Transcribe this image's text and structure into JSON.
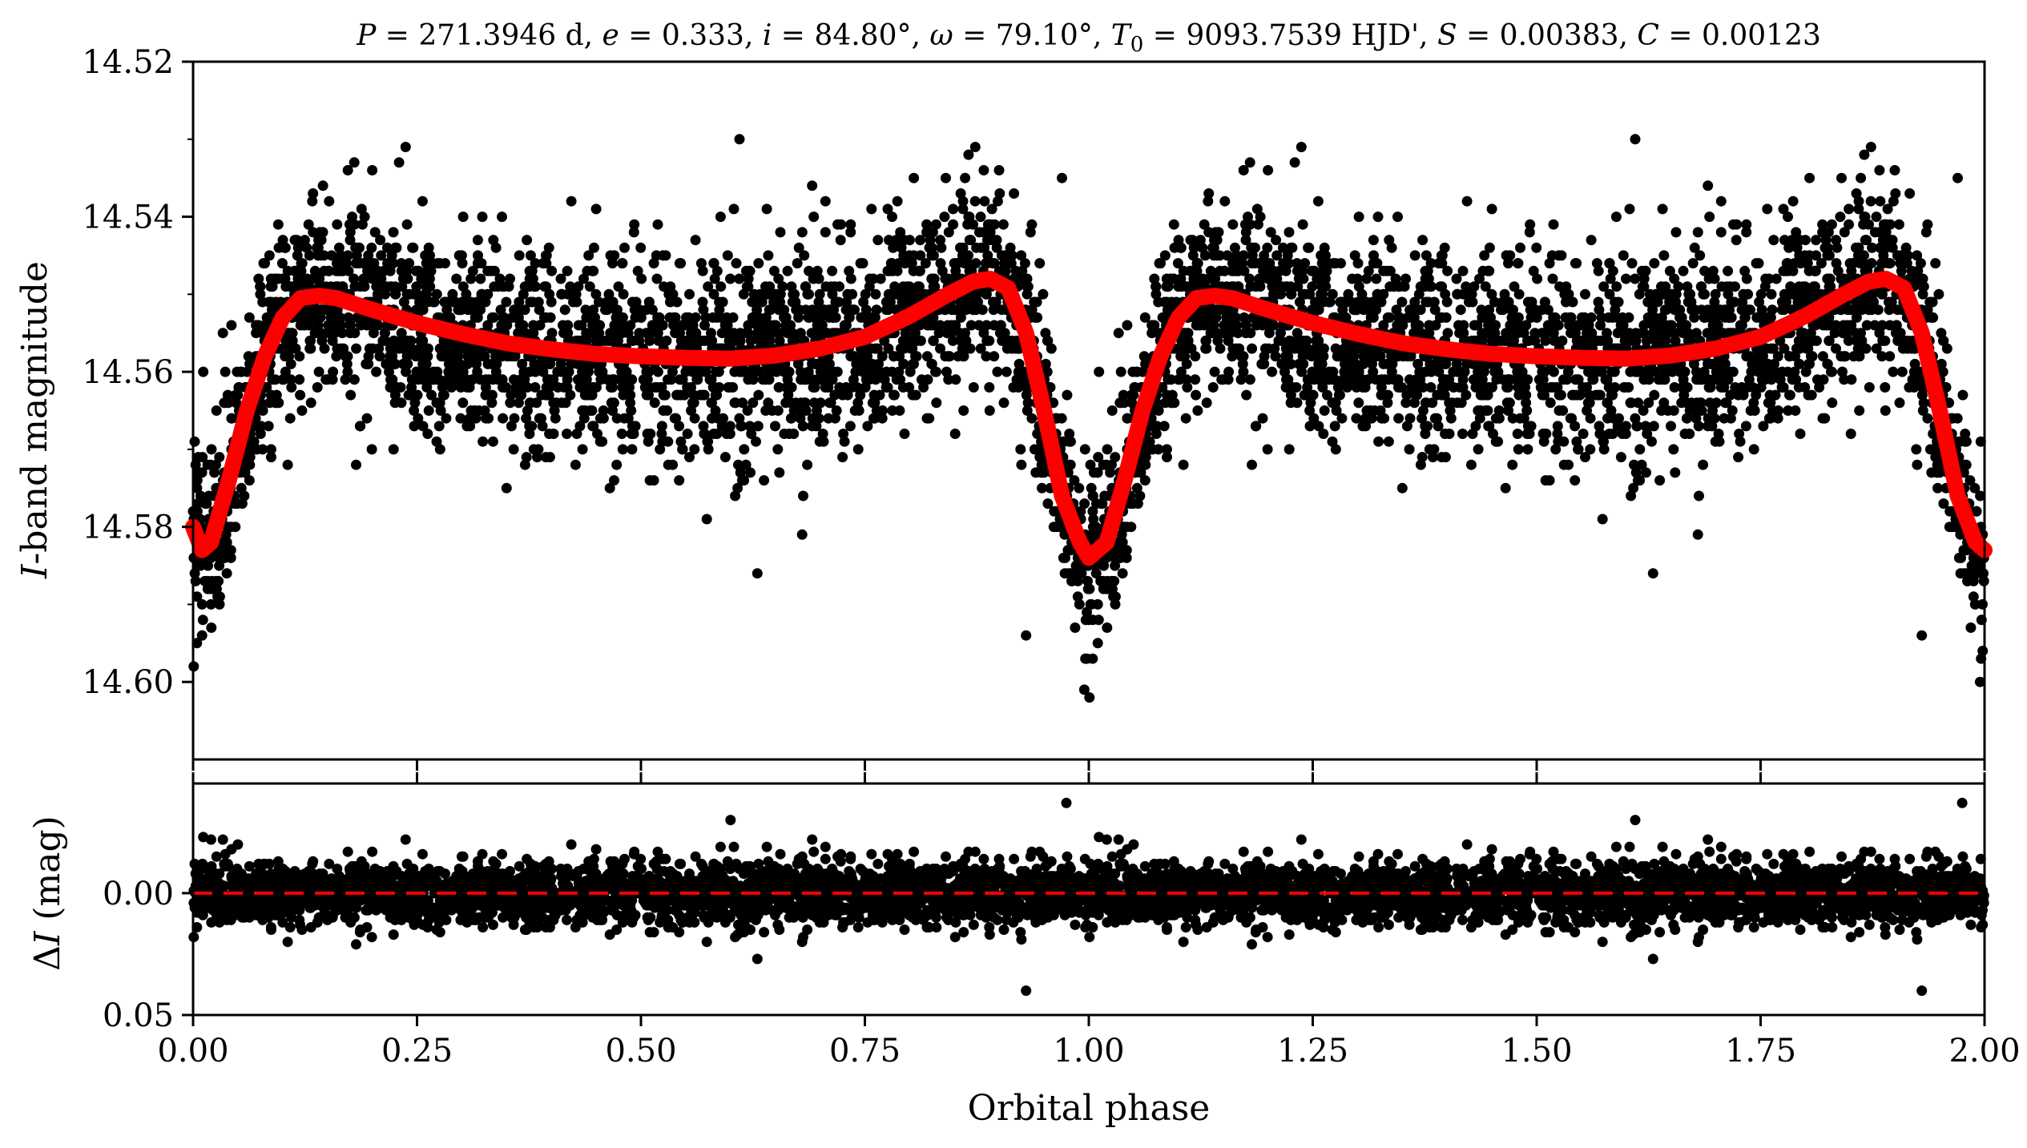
{
  "chart_data": [
    {
      "panel": "top",
      "type": "scatter",
      "title": "P = 271.3946 d, e = 0.333, i = 84.80°, ω = 79.10°, T0 = 9093.7539 HJD', S = 0.00383, C = 0.00123",
      "title_parts": {
        "P_sym": "P",
        "P_val": " = 271.3946 d, ",
        "e_sym": "e",
        "e_val": " = 0.333, ",
        "i_sym": "i",
        "i_val": " = 84.80°, ",
        "w_sym": "ω",
        "w_val": " = 79.10°, ",
        "T_sym": "T",
        "T_sub": "0",
        "T_val": " = 9093.7539 HJD', ",
        "S_sym": "S",
        "S_val": " = 0.00383, ",
        "C_sym": "C",
        "C_val": " = 0.00123"
      },
      "xlabel": "",
      "ylabel": "I-band magnitude",
      "ylabel_parts": {
        "italic": "I",
        "rest": "-band magnitude"
      },
      "xlim": [
        0.0,
        2.0
      ],
      "ylim": [
        14.61,
        14.52
      ],
      "y_inverted": true,
      "yticks": [
        "14.52",
        "14.54",
        "14.56",
        "14.58",
        "14.60"
      ],
      "yticks_values": [
        14.52,
        14.54,
        14.56,
        14.58,
        14.6
      ],
      "xticks_values": [
        0.0,
        0.25,
        0.5,
        0.75,
        1.0,
        1.25,
        1.5,
        1.75,
        2.0
      ],
      "grid": false,
      "series": [
        {
          "kind": "scatter",
          "color": "#000000",
          "description_points": [
            [
              0.0,
              14.578
            ],
            [
              0.005,
              14.585
            ],
            [
              0.01,
              14.594
            ],
            [
              0.02,
              14.59
            ],
            [
              0.03,
              14.582
            ],
            [
              0.04,
              14.574
            ],
            [
              0.05,
              14.566
            ],
            [
              0.06,
              14.562
            ],
            [
              0.07,
              14.558
            ],
            [
              0.08,
              14.554
            ],
            [
              0.1,
              14.548
            ],
            [
              0.12,
              14.547
            ],
            [
              0.14,
              14.543
            ],
            [
              0.145,
              14.536
            ],
            [
              0.18,
              14.533
            ],
            [
              0.2,
              14.534
            ],
            [
              0.23,
              14.533
            ],
            [
              0.25,
              14.55
            ],
            [
              0.28,
              14.556
            ],
            [
              0.3,
              14.545
            ],
            [
              0.35,
              14.575
            ],
            [
              0.4,
              14.556
            ],
            [
              0.45,
              14.539
            ],
            [
              0.47,
              14.574
            ],
            [
              0.5,
              14.553
            ],
            [
              0.55,
              14.56
            ],
            [
              0.6,
              14.557
            ],
            [
              0.61,
              14.53
            ],
            [
              0.63,
              14.586
            ],
            [
              0.66,
              14.568
            ],
            [
              0.68,
              14.581
            ],
            [
              0.7,
              14.561
            ],
            [
              0.75,
              14.557
            ],
            [
              0.8,
              14.554
            ],
            [
              0.85,
              14.549
            ],
            [
              0.88,
              14.544
            ],
            [
              0.9,
              14.547
            ],
            [
              0.91,
              14.551
            ],
            [
              0.93,
              14.594
            ],
            [
              0.95,
              14.567
            ],
            [
              0.97,
              14.535
            ],
            [
              0.98,
              14.579
            ],
            [
              0.995,
              14.601
            ],
            [
              1.0,
              14.592
            ],
            [
              1.01,
              14.595
            ],
            [
              1.02,
              14.588
            ],
            [
              1.03,
              14.583
            ],
            [
              1.05,
              14.566
            ],
            [
              1.1,
              14.549
            ],
            [
              1.14,
              14.543
            ],
            [
              1.18,
              14.533
            ],
            [
              1.2,
              14.534
            ],
            [
              1.23,
              14.533
            ],
            [
              1.3,
              14.548
            ],
            [
              1.35,
              14.575
            ],
            [
              1.45,
              14.539
            ],
            [
              1.5,
              14.553
            ],
            [
              1.58,
              14.557
            ],
            [
              1.61,
              14.53
            ],
            [
              1.63,
              14.586
            ],
            [
              1.68,
              14.581
            ],
            [
              1.75,
              14.557
            ],
            [
              1.85,
              14.549
            ],
            [
              1.89,
              14.544
            ],
            [
              1.93,
              14.594
            ],
            [
              1.97,
              14.535
            ],
            [
              1.98,
              14.579
            ],
            [
              1.995,
              14.6
            ]
          ]
        },
        {
          "kind": "line",
          "name": "model",
          "color": "#ff0000",
          "description_points": [
            [
              0.0,
              14.58
            ],
            [
              0.01,
              14.583
            ],
            [
              0.02,
              14.582
            ],
            [
              0.04,
              14.574
            ],
            [
              0.06,
              14.565
            ],
            [
              0.08,
              14.558
            ],
            [
              0.1,
              14.553
            ],
            [
              0.12,
              14.5505
            ],
            [
              0.14,
              14.5502
            ],
            [
              0.16,
              14.5505
            ],
            [
              0.2,
              14.552
            ],
            [
              0.25,
              14.5537
            ],
            [
              0.3,
              14.5551
            ],
            [
              0.35,
              14.5563
            ],
            [
              0.4,
              14.5571
            ],
            [
              0.45,
              14.5577
            ],
            [
              0.5,
              14.558
            ],
            [
              0.55,
              14.5582
            ],
            [
              0.6,
              14.5583
            ],
            [
              0.65,
              14.5579
            ],
            [
              0.7,
              14.557
            ],
            [
              0.75,
              14.5555
            ],
            [
              0.8,
              14.5528
            ],
            [
              0.84,
              14.5502
            ],
            [
              0.87,
              14.5484
            ],
            [
              0.89,
              14.548
            ],
            [
              0.91,
              14.5492
            ],
            [
              0.93,
              14.555
            ],
            [
              0.95,
              14.565
            ],
            [
              0.97,
              14.576
            ],
            [
              0.99,
              14.582
            ],
            [
              1.0,
              14.584
            ],
            [
              1.01,
              14.583
            ],
            [
              1.02,
              14.582
            ],
            [
              1.04,
              14.574
            ],
            [
              1.06,
              14.565
            ],
            [
              1.08,
              14.558
            ],
            [
              1.1,
              14.553
            ],
            [
              1.12,
              14.5505
            ],
            [
              1.14,
              14.5502
            ],
            [
              1.16,
              14.5505
            ],
            [
              1.2,
              14.552
            ],
            [
              1.25,
              14.5537
            ],
            [
              1.3,
              14.5551
            ],
            [
              1.35,
              14.5563
            ],
            [
              1.4,
              14.5571
            ],
            [
              1.45,
              14.5577
            ],
            [
              1.5,
              14.558
            ],
            [
              1.55,
              14.5582
            ],
            [
              1.6,
              14.5583
            ],
            [
              1.65,
              14.5579
            ],
            [
              1.7,
              14.557
            ],
            [
              1.75,
              14.5555
            ],
            [
              1.8,
              14.5528
            ],
            [
              1.84,
              14.5502
            ],
            [
              1.87,
              14.5484
            ],
            [
              1.89,
              14.548
            ],
            [
              1.91,
              14.5492
            ],
            [
              1.93,
              14.555
            ],
            [
              1.95,
              14.565
            ],
            [
              1.97,
              14.576
            ],
            [
              1.99,
              14.582
            ],
            [
              2.0,
              14.583
            ]
          ]
        }
      ]
    },
    {
      "panel": "bottom",
      "type": "scatter",
      "title": "",
      "xlabel": "Orbital phase",
      "ylabel": "ΔI (mag)",
      "ylabel_parts": {
        "delta": "Δ",
        "italic": "I",
        "rest": " (mag)"
      },
      "xlim": [
        0.0,
        2.0
      ],
      "ylim": [
        0.05,
        -0.045
      ],
      "y_inverted": true,
      "yticks": [
        "0.00",
        "0.05"
      ],
      "yticks_values": [
        0.0,
        0.05
      ],
      "xticks": [
        "0.00",
        "0.25",
        "0.50",
        "0.75",
        "1.00",
        "1.25",
        "1.50",
        "1.75",
        "2.00"
      ],
      "xticks_values": [
        0.0,
        0.25,
        0.5,
        0.75,
        1.0,
        1.25,
        1.5,
        1.75,
        2.0
      ],
      "grid": false,
      "series": [
        {
          "kind": "scatter",
          "color": "#000000",
          "description_points": [
            [
              0.02,
              -0.022
            ],
            [
              0.05,
              -0.02
            ],
            [
              0.1,
              0.012
            ],
            [
              0.2,
              -0.017
            ],
            [
              0.3,
              -0.015
            ],
            [
              0.45,
              -0.018
            ],
            [
              0.6,
              -0.03
            ],
            [
              0.63,
              0.027
            ],
            [
              0.68,
              0.02
            ],
            [
              0.8,
              -0.012
            ],
            [
              0.9,
              -0.01
            ],
            [
              0.93,
              0.04
            ],
            [
              0.975,
              -0.037
            ],
            [
              1.02,
              -0.022
            ],
            [
              1.05,
              -0.02
            ],
            [
              1.2,
              -0.017
            ],
            [
              1.45,
              -0.018
            ],
            [
              1.61,
              -0.03
            ],
            [
              1.63,
              0.027
            ],
            [
              1.68,
              0.02
            ],
            [
              1.93,
              0.04
            ],
            [
              1.975,
              -0.037
            ]
          ]
        },
        {
          "kind": "hline",
          "name": "zero",
          "color": "#ff0000",
          "style": "dashed",
          "y": 0.0
        }
      ]
    }
  ]
}
